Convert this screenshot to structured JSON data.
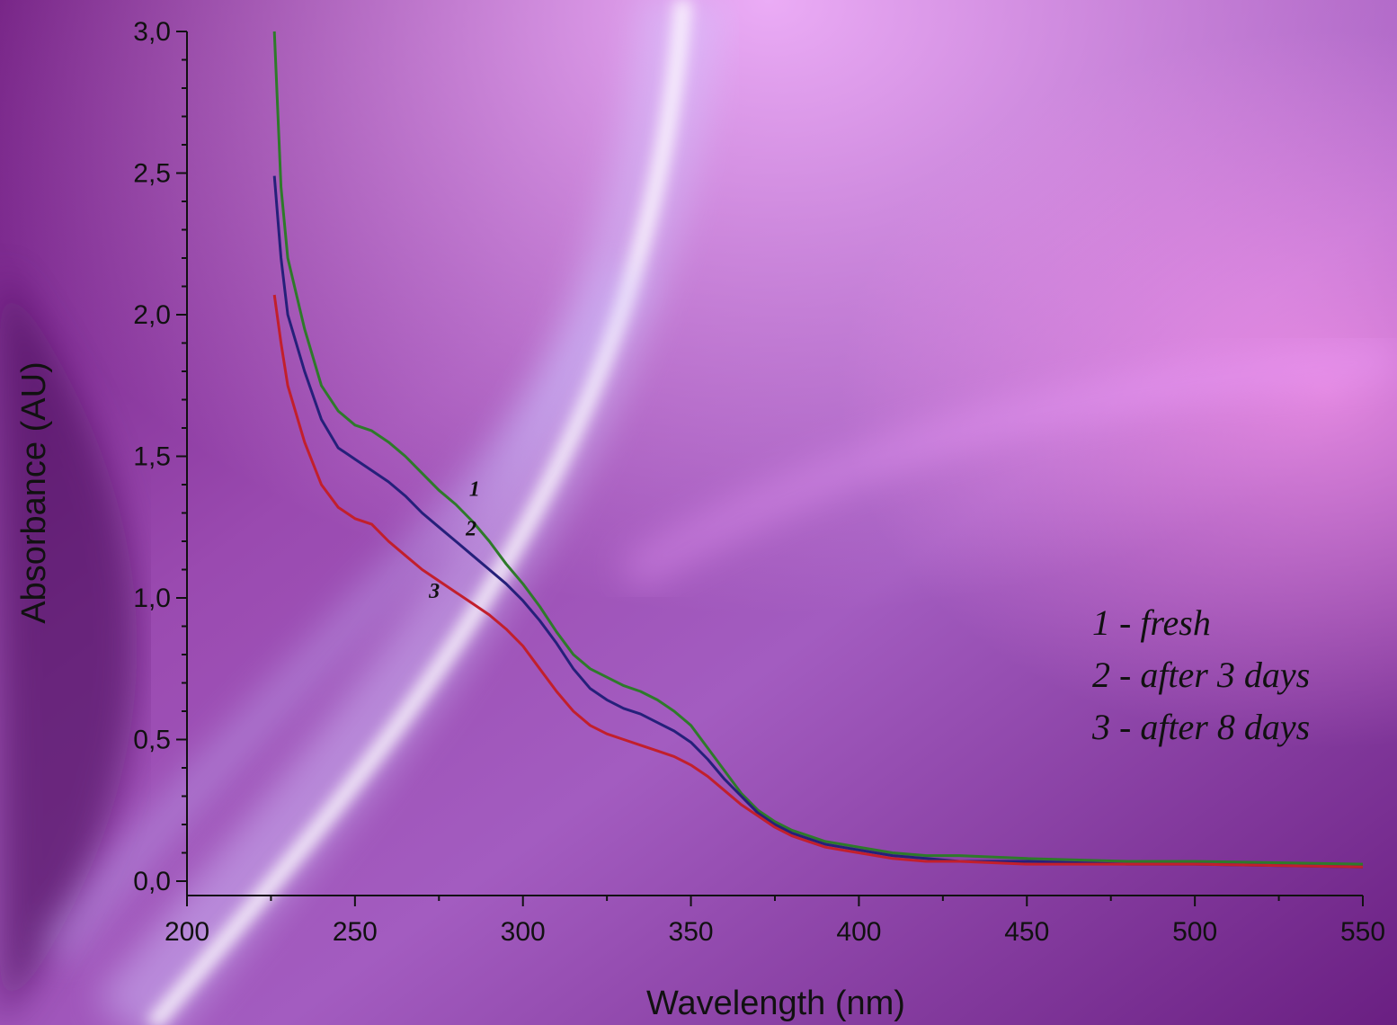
{
  "chart_data": {
    "type": "line",
    "xlabel": "Wavelength (nm)",
    "ylabel": "Absorbance (AU)",
    "xlim": [
      200,
      550
    ],
    "ylim": [
      0,
      3.0
    ],
    "x_ticks": [
      "200",
      "250",
      "300",
      "350",
      "400",
      "450",
      "500",
      "550"
    ],
    "y_ticks": [
      "0,0",
      "0,5",
      "1,0",
      "1,5",
      "2,0",
      "2,5",
      "3,0"
    ],
    "grid": false,
    "legend_position": "right",
    "legend": [
      "1 - fresh",
      "2 - after 3 days",
      "3 - after 8 days"
    ],
    "series": [
      {
        "name": "1",
        "color": "#2e7a2a",
        "x": [
          226,
          228,
          230,
          235,
          240,
          245,
          250,
          255,
          260,
          265,
          270,
          275,
          280,
          285,
          290,
          295,
          300,
          305,
          310,
          315,
          320,
          325,
          330,
          335,
          340,
          345,
          350,
          355,
          360,
          365,
          370,
          375,
          380,
          385,
          390,
          395,
          400,
          410,
          420,
          430,
          450,
          480,
          500,
          550
        ],
        "y": [
          3.0,
          2.45,
          2.2,
          1.95,
          1.75,
          1.66,
          1.61,
          1.59,
          1.55,
          1.5,
          1.44,
          1.38,
          1.33,
          1.27,
          1.2,
          1.12,
          1.05,
          0.97,
          0.88,
          0.8,
          0.75,
          0.72,
          0.69,
          0.67,
          0.64,
          0.6,
          0.55,
          0.47,
          0.39,
          0.31,
          0.25,
          0.21,
          0.18,
          0.16,
          0.14,
          0.13,
          0.12,
          0.1,
          0.09,
          0.09,
          0.08,
          0.07,
          0.07,
          0.06
        ]
      },
      {
        "name": "2",
        "color": "#25207a",
        "x": [
          226,
          228,
          230,
          235,
          240,
          245,
          250,
          255,
          260,
          265,
          270,
          275,
          280,
          285,
          290,
          295,
          300,
          305,
          310,
          315,
          320,
          325,
          330,
          335,
          340,
          345,
          350,
          355,
          360,
          365,
          370,
          375,
          380,
          385,
          390,
          395,
          400,
          410,
          420,
          430,
          450,
          480,
          500,
          550
        ],
        "y": [
          2.49,
          2.2,
          2.0,
          1.8,
          1.63,
          1.53,
          1.49,
          1.45,
          1.41,
          1.36,
          1.3,
          1.25,
          1.2,
          1.15,
          1.1,
          1.05,
          0.99,
          0.92,
          0.84,
          0.75,
          0.68,
          0.64,
          0.61,
          0.59,
          0.56,
          0.53,
          0.49,
          0.43,
          0.36,
          0.3,
          0.24,
          0.2,
          0.17,
          0.15,
          0.13,
          0.12,
          0.11,
          0.09,
          0.08,
          0.07,
          0.07,
          0.06,
          0.06,
          0.05
        ]
      },
      {
        "name": "3",
        "color": "#c21f2c",
        "x": [
          226,
          228,
          230,
          235,
          240,
          245,
          250,
          255,
          260,
          265,
          270,
          275,
          280,
          285,
          290,
          295,
          300,
          305,
          310,
          315,
          320,
          325,
          330,
          335,
          340,
          345,
          350,
          355,
          360,
          365,
          370,
          375,
          380,
          385,
          390,
          395,
          400,
          410,
          420,
          430,
          450,
          480,
          500,
          550
        ],
        "y": [
          2.07,
          1.9,
          1.75,
          1.55,
          1.4,
          1.32,
          1.28,
          1.26,
          1.2,
          1.15,
          1.1,
          1.06,
          1.02,
          0.98,
          0.94,
          0.89,
          0.83,
          0.75,
          0.67,
          0.6,
          0.55,
          0.52,
          0.5,
          0.48,
          0.46,
          0.44,
          0.41,
          0.37,
          0.32,
          0.27,
          0.23,
          0.19,
          0.16,
          0.14,
          0.12,
          0.11,
          0.1,
          0.08,
          0.07,
          0.07,
          0.06,
          0.06,
          0.06,
          0.05
        ]
      }
    ],
    "curve_labels": [
      {
        "text": "1",
        "x": 284,
        "y": 1.36
      },
      {
        "text": "2",
        "x": 283,
        "y": 1.22
      },
      {
        "text": "3",
        "x": 272,
        "y": 1.0
      }
    ]
  }
}
